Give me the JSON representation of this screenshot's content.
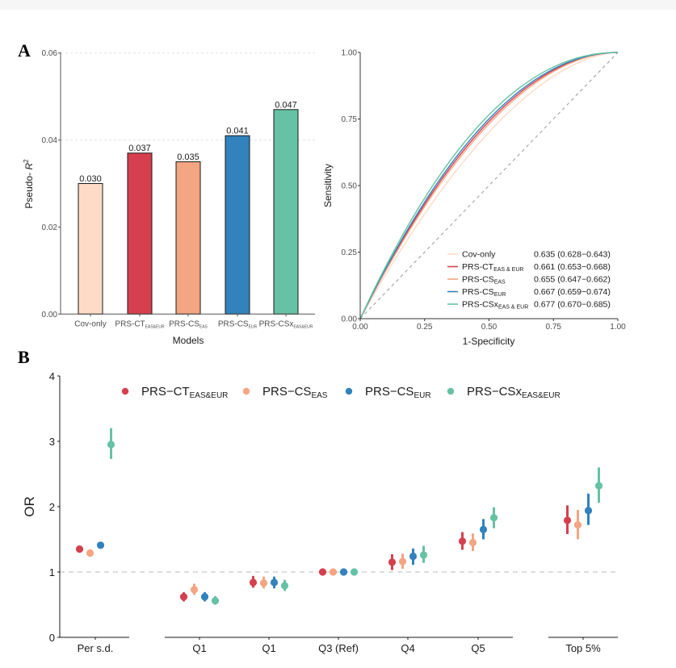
{
  "chart_data": [
    {
      "panel": "A",
      "type": "bar",
      "title": "",
      "xlabel": "Models",
      "ylabel": "Pseudo- R²",
      "ylim": [
        0,
        0.06
      ],
      "yticks": [
        "0.00",
        "0.02",
        "0.04",
        "0.06"
      ],
      "grid": "horizontal dashed at 0.04 and 0.06",
      "categories": [
        {
          "main": "Cov-only",
          "sub": ""
        },
        {
          "main": "PRS-CT",
          "sub": "EAS&EUR"
        },
        {
          "main": "PRS-CS",
          "sub": "EAS"
        },
        {
          "main": "PRS-CS",
          "sub": "EUR"
        },
        {
          "main": "PRS-CSx",
          "sub": "EAS&EUR"
        }
      ],
      "values": [
        0.03,
        0.037,
        0.035,
        0.041,
        0.047
      ],
      "value_labels": [
        "0.030",
        "0.037",
        "0.035",
        "0.041",
        "0.047"
      ],
      "colors": [
        "#fddbc7",
        "#d6404e",
        "#f4a582",
        "#3182bd",
        "#66c2a5"
      ]
    },
    {
      "panel": "A",
      "type": "line",
      "title": "",
      "xlabel": "1-Specificity",
      "ylabel": "Sensitivity",
      "xlim": [
        0,
        1
      ],
      "ylim": [
        0,
        1
      ],
      "xticks": [
        "0.00",
        "0.25",
        "0.50",
        "0.75",
        "1.00"
      ],
      "yticks": [
        "0.00",
        "0.25",
        "0.50",
        "0.75",
        "1.00"
      ],
      "reference_line": "diagonal dashed",
      "legend_position": "bottom-right",
      "series": [
        {
          "name": "Cov-only",
          "sub": "",
          "auc": "0.635 (0.628−0.643)",
          "auc_value": 0.635,
          "color": "#fddbc7"
        },
        {
          "name": "PRS-CT",
          "sub": "EAS & EUR",
          "auc": "0.661 (0.653−0.668)",
          "auc_value": 0.661,
          "color": "#d6404e"
        },
        {
          "name": "PRS-CS",
          "sub": "EAS",
          "auc": "0.655 (0.647−0.662)",
          "auc_value": 0.655,
          "color": "#f4a582"
        },
        {
          "name": "PRS-CS",
          "sub": "EUR",
          "auc": "0.667 (0.659−0.674)",
          "auc_value": 0.667,
          "color": "#3182bd"
        },
        {
          "name": "PRS-CSx",
          "sub": "EAS & EUR",
          "auc": "0.677 (0.670−0.685)",
          "auc_value": 0.677,
          "color": "#66c2a5"
        }
      ]
    },
    {
      "panel": "B",
      "type": "scatter",
      "title": "",
      "xlabel": "",
      "ylabel": "OR",
      "ylim": [
        0,
        4
      ],
      "yticks": [
        "0",
        "1",
        "2",
        "3",
        "4"
      ],
      "reference_line": 1,
      "legend_position": "top",
      "groups": [
        "Per s.d.",
        "Q1",
        "Q1",
        "Q3 (Ref)",
        "Q4",
        "Q5",
        "Top 5%"
      ],
      "series": [
        {
          "name": "PRS-CT",
          "sub": "EAS&EUR",
          "color": "#d6404e",
          "or": [
            1.35,
            0.62,
            0.84,
            1.0,
            1.15,
            1.47,
            1.79
          ],
          "lower": [
            1.3,
            0.55,
            0.76,
            1.0,
            1.03,
            1.34,
            1.58
          ],
          "upper": [
            1.4,
            0.69,
            0.94,
            1.0,
            1.27,
            1.61,
            2.02
          ]
        },
        {
          "name": "PRS-CS",
          "sub": "EAS",
          "color": "#f4a582",
          "or": [
            1.29,
            0.73,
            0.83,
            1.0,
            1.16,
            1.45,
            1.72
          ],
          "lower": [
            1.25,
            0.65,
            0.75,
            1.0,
            1.05,
            1.32,
            1.5
          ],
          "upper": [
            1.33,
            0.82,
            0.93,
            1.0,
            1.28,
            1.59,
            1.95
          ]
        },
        {
          "name": "PRS-CS",
          "sub": "EUR",
          "color": "#3182bd",
          "or": [
            1.41,
            0.62,
            0.84,
            1.0,
            1.24,
            1.65,
            1.94
          ],
          "lower": [
            1.37,
            0.55,
            0.75,
            1.0,
            1.11,
            1.5,
            1.72
          ],
          "upper": [
            1.45,
            0.69,
            0.93,
            1.0,
            1.36,
            1.81,
            2.2
          ]
        },
        {
          "name": "PRS-CSx",
          "sub": "EAS&EUR",
          "color": "#66c2a5",
          "or": [
            2.95,
            0.56,
            0.79,
            1.0,
            1.26,
            1.83,
            2.32
          ],
          "lower": [
            2.73,
            0.5,
            0.71,
            1.0,
            1.14,
            1.67,
            2.06
          ],
          "upper": [
            3.2,
            0.63,
            0.88,
            1.0,
            1.4,
            1.99,
            2.6
          ]
        }
      ]
    }
  ],
  "panels": {
    "a_letter": "A",
    "b_letter": "B"
  }
}
